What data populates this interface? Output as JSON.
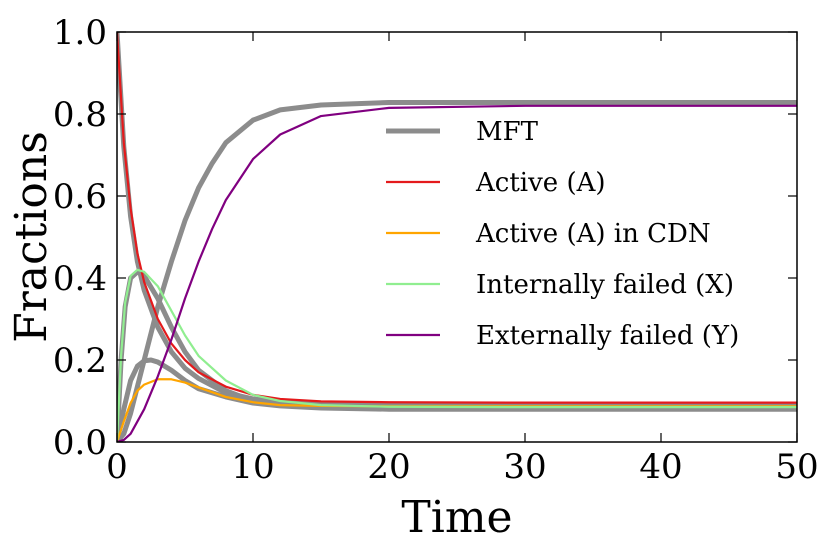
{
  "chart_data": {
    "type": "line",
    "title": "",
    "xlabel": "Time",
    "ylabel": "Fractions",
    "xlim": [
      0,
      50
    ],
    "ylim": [
      0,
      1.0
    ],
    "x_ticks": [
      "0",
      "10",
      "20",
      "30",
      "40",
      "50"
    ],
    "y_ticks": [
      "0.0",
      "0.2",
      "0.4",
      "0.6",
      "0.8",
      "1.0"
    ],
    "grid": false,
    "legend_position": "center-right",
    "colors": {
      "mft": "#8c8c8c",
      "active": "#e41a1c",
      "active_cdn": "#ffa500",
      "internally_failed": "#90ee90",
      "externally_failed": "#800080"
    },
    "legend": [
      {
        "key": "mft",
        "label": "MFT"
      },
      {
        "key": "active",
        "label": "Active (A)"
      },
      {
        "key": "active_cdn",
        "label": "Active (A) in CDN"
      },
      {
        "key": "internally_failed",
        "label": "Internally failed (X)"
      },
      {
        "key": "externally_failed",
        "label": "Externally failed (Y)"
      }
    ],
    "series": [
      {
        "name": "MFT Active",
        "style": "mft",
        "x": [
          0,
          0.5,
          1,
          1.5,
          2,
          3,
          4,
          5,
          6,
          8,
          10,
          12,
          15,
          20,
          30,
          40,
          50
        ],
        "y": [
          1.0,
          0.72,
          0.55,
          0.44,
          0.37,
          0.28,
          0.22,
          0.18,
          0.155,
          0.12,
          0.105,
          0.097,
          0.092,
          0.09,
          0.09,
          0.09,
          0.09
        ]
      },
      {
        "name": "MFT Active in CDN",
        "style": "mft",
        "x": [
          0,
          0.5,
          1,
          1.5,
          2,
          2.5,
          3,
          4,
          5,
          6,
          8,
          10,
          12,
          15,
          20,
          30,
          50
        ],
        "y": [
          0.0,
          0.08,
          0.15,
          0.185,
          0.198,
          0.2,
          0.195,
          0.175,
          0.15,
          0.13,
          0.11,
          0.095,
          0.088,
          0.083,
          0.08,
          0.08,
          0.08
        ]
      },
      {
        "name": "MFT Internally failed",
        "style": "mft",
        "x": [
          0,
          0.3,
          0.6,
          1,
          1.5,
          2,
          3,
          4,
          5,
          6,
          8,
          10,
          12,
          15,
          20,
          30,
          50
        ],
        "y": [
          0.0,
          0.2,
          0.33,
          0.4,
          0.415,
          0.405,
          0.35,
          0.28,
          0.22,
          0.175,
          0.125,
          0.1,
          0.09,
          0.084,
          0.082,
          0.082,
          0.082
        ]
      },
      {
        "name": "MFT Externally failed",
        "style": "mft",
        "x": [
          0,
          0.5,
          1,
          2,
          3,
          4,
          5,
          6,
          7,
          8,
          10,
          12,
          15,
          20,
          30,
          40,
          50
        ],
        "y": [
          0.0,
          0.02,
          0.07,
          0.2,
          0.33,
          0.44,
          0.54,
          0.62,
          0.68,
          0.73,
          0.785,
          0.81,
          0.822,
          0.828,
          0.828,
          0.828,
          0.828
        ]
      },
      {
        "name": "Active (A)",
        "style": "active",
        "x": [
          0,
          0.5,
          1,
          1.5,
          2,
          3,
          4,
          5,
          6,
          8,
          10,
          12,
          15,
          20,
          30,
          40,
          50
        ],
        "y": [
          1.0,
          0.73,
          0.57,
          0.46,
          0.39,
          0.3,
          0.24,
          0.2,
          0.17,
          0.135,
          0.115,
          0.105,
          0.099,
          0.097,
          0.096,
          0.096,
          0.096
        ]
      },
      {
        "name": "Active (A) in CDN",
        "style": "active_cdn",
        "x": [
          0,
          0.5,
          1,
          1.5,
          2,
          3,
          4,
          5,
          6,
          8,
          10,
          12,
          15,
          20,
          30,
          50
        ],
        "y": [
          0.0,
          0.05,
          0.095,
          0.125,
          0.14,
          0.153,
          0.153,
          0.145,
          0.133,
          0.11,
          0.097,
          0.09,
          0.088,
          0.087,
          0.087,
          0.087
        ]
      },
      {
        "name": "Internally failed (X)",
        "style": "internally_failed",
        "x": [
          0,
          0.3,
          0.6,
          1,
          1.5,
          2,
          3,
          4,
          5,
          6,
          8,
          10,
          12,
          15,
          20,
          30,
          50
        ],
        "y": [
          0.0,
          0.21,
          0.34,
          0.405,
          0.42,
          0.415,
          0.38,
          0.32,
          0.26,
          0.21,
          0.15,
          0.115,
          0.1,
          0.09,
          0.086,
          0.085,
          0.085
        ]
      },
      {
        "name": "Externally failed (Y)",
        "style": "externally_failed",
        "x": [
          0,
          0.5,
          1,
          2,
          3,
          4,
          5,
          6,
          7,
          8,
          10,
          12,
          15,
          20,
          30,
          40,
          50
        ],
        "y": [
          0.0,
          0.005,
          0.02,
          0.08,
          0.16,
          0.25,
          0.35,
          0.44,
          0.52,
          0.59,
          0.69,
          0.75,
          0.795,
          0.815,
          0.82,
          0.82,
          0.82
        ]
      }
    ]
  }
}
